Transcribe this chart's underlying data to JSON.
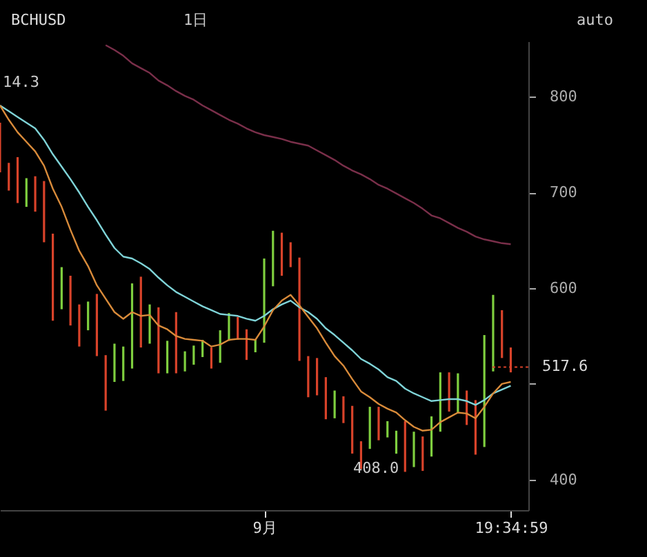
{
  "chart_data": {
    "type": "bar",
    "title": "BCHUSD",
    "categories": [
      null,
      null,
      null,
      null,
      null,
      null,
      null,
      null,
      null,
      null,
      null,
      null,
      null,
      null,
      null,
      null,
      null,
      null,
      null,
      null,
      null,
      null,
      null,
      null,
      null,
      null,
      null,
      null,
      null,
      null,
      "9月",
      null,
      null,
      null,
      null,
      null,
      null,
      null,
      null,
      null,
      null,
      null,
      null,
      null,
      null,
      null,
      null,
      null,
      null,
      null,
      null,
      null,
      null,
      null,
      null,
      null,
      null,
      null,
      "19:34:59"
    ],
    "base": [
      721,
      702,
      689,
      685,
      680,
      648,
      566,
      578,
      561,
      539,
      556,
      529,
      472,
      502,
      503,
      516,
      538,
      542,
      511,
      511,
      511,
      513,
      520,
      528,
      516,
      522,
      545,
      546,
      525,
      533,
      543,
      602,
      613,
      622,
      524,
      486,
      488,
      463,
      464,
      459,
      427,
      411,
      432,
      441,
      444,
      427,
      408,
      413,
      409,
      424,
      450,
      471,
      469,
      457,
      426,
      434,
      513,
      527,
      512
    ],
    "values": [
      52,
      29,
      48,
      30,
      37,
      64,
      91,
      44,
      52,
      44,
      30,
      65,
      58,
      40,
      36,
      89,
      74,
      41,
      69,
      34,
      64,
      21,
      20,
      18,
      22,
      34,
      29,
      24,
      32,
      13,
      88,
      58,
      45,
      26,
      108,
      43,
      39,
      44,
      29,
      28,
      50,
      29,
      44,
      35,
      17,
      24,
      53,
      37,
      36,
      42,
      62,
      41,
      42,
      36,
      57,
      117,
      80,
      50,
      26
    ],
    "colors": [
      "#d9432a",
      "#d9432a",
      "#d9432a",
      "#7fcf3f",
      "#d9432a",
      "#d9432a",
      "#d9432a",
      "#7fcf3f",
      "#d9432a",
      "#d9432a",
      "#7fcf3f",
      "#d9432a",
      "#d9432a",
      "#7fcf3f",
      "#7fcf3f",
      "#7fcf3f",
      "#d9432a",
      "#7fcf3f",
      "#d9432a",
      "#7fcf3f",
      "#d9432a",
      "#7fcf3f",
      "#7fcf3f",
      "#7fcf3f",
      "#d9432a",
      "#7fcf3f",
      "#7fcf3f",
      "#d9432a",
      "#d9432a",
      "#7fcf3f",
      "#7fcf3f",
      "#7fcf3f",
      "#d9432a",
      "#d9432a",
      "#d9432a",
      "#d9432a",
      "#d9432a",
      "#d9432a",
      "#7fcf3f",
      "#d9432a",
      "#d9432a",
      "#d9432a",
      "#7fcf3f",
      "#d9432a",
      "#7fcf3f",
      "#7fcf3f",
      "#d9432a",
      "#7fcf3f",
      "#d9432a",
      "#7fcf3f",
      "#7fcf3f",
      "#d9432a",
      "#7fcf3f",
      "#d9432a",
      "#d9432a",
      "#7fcf3f",
      "#7fcf3f",
      "#d9432a",
      "#d9432a"
    ],
    "series": [
      {
        "type": "line",
        "color": "#7fd4d8",
        "values": [
          791,
          785,
          779,
          773,
          767,
          755,
          740,
          727,
          714,
          700,
          685,
          671,
          656,
          642,
          633,
          631,
          626,
          620,
          611,
          603,
          596,
          591,
          586,
          581,
          577,
          573,
          572,
          571,
          568,
          566,
          571,
          578,
          583,
          587,
          580,
          575,
          568,
          558,
          551,
          543,
          535,
          526,
          521,
          515,
          507,
          503,
          495,
          490,
          486,
          482,
          483,
          484,
          484,
          482,
          478,
          483,
          490,
          494,
          498
        ]
      },
      {
        "type": "line",
        "color": "#d98b3a",
        "values": [
          791,
          776,
          763,
          753,
          743,
          728,
          704,
          685,
          661,
          639,
          623,
          603,
          589,
          575,
          568,
          575,
          571,
          572,
          561,
          557,
          550,
          547,
          546,
          545,
          539,
          541,
          546,
          547,
          547,
          546,
          560,
          577,
          587,
          593,
          582,
          570,
          558,
          543,
          529,
          519,
          505,
          492,
          486,
          479,
          474,
          470,
          462,
          455,
          451,
          452,
          460,
          465,
          470,
          469,
          464,
          476,
          490,
          500,
          502
        ]
      },
      {
        "type": "line",
        "color": "#7a2f4a",
        "values": [
          null,
          null,
          null,
          null,
          null,
          null,
          null,
          null,
          null,
          null,
          null,
          null,
          854,
          849,
          843,
          835,
          830,
          825,
          817,
          812,
          806,
          801,
          797,
          791,
          786,
          781,
          776,
          772,
          767,
          763,
          760,
          758,
          756,
          753,
          751,
          749,
          744,
          739,
          734,
          728,
          723,
          719,
          714,
          708,
          704,
          699,
          694,
          689,
          683,
          676,
          673,
          668,
          663,
          659,
          654,
          651,
          649,
          647,
          646
        ]
      }
    ],
    "ylim": [
      368,
      858
    ],
    "yticks": [
      400,
      {
        "value": 500,
        "label": null
      },
      600,
      700,
      800
    ],
    "ref_lines": [
      {
        "axis": "y",
        "value": 517.6,
        "label": "517.6",
        "color": "#d9432a",
        "line_style": "dotted"
      }
    ],
    "annotations": [
      "1日",
      "auto",
      "14.3",
      "408.0"
    ],
    "grid": false
  }
}
